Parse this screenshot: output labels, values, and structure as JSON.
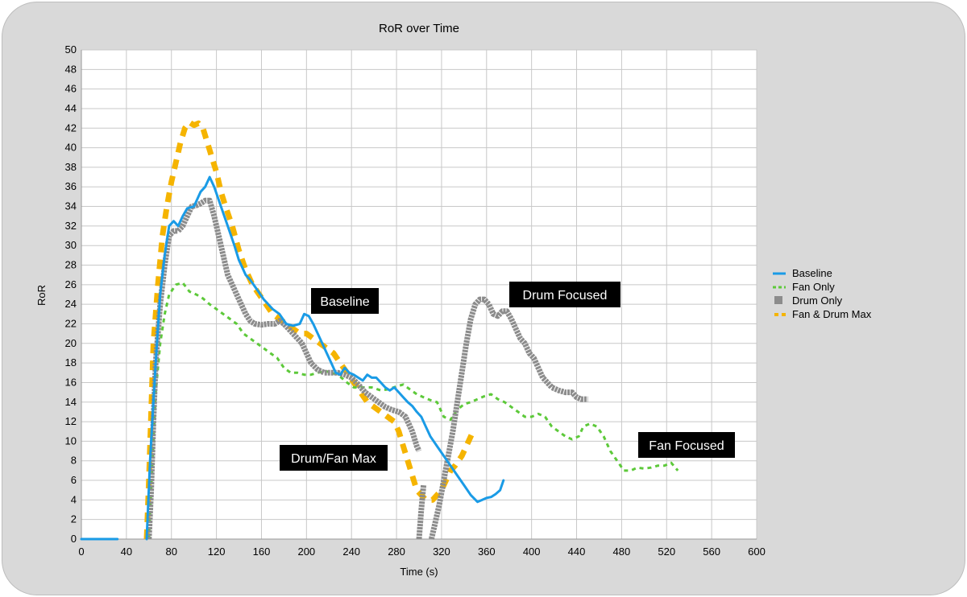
{
  "chart_data": {
    "type": "line",
    "title": "RoR over Time",
    "xlabel": "Time (s)",
    "ylabel": "RoR",
    "xlim": [
      0,
      600
    ],
    "ylim": [
      0,
      50
    ],
    "xticks": [
      0,
      40,
      80,
      120,
      160,
      200,
      240,
      280,
      320,
      360,
      400,
      440,
      480,
      520,
      560,
      600
    ],
    "yticks": [
      0,
      2,
      4,
      6,
      8,
      10,
      12,
      14,
      16,
      18,
      20,
      22,
      24,
      26,
      28,
      30,
      32,
      34,
      36,
      38,
      40,
      42,
      44,
      46,
      48,
      50
    ],
    "grid": true,
    "legend_position": "right",
    "series": [
      {
        "name": "Baseline",
        "color": "#1a9be6",
        "style": "solid",
        "points": [
          [
            0,
            0
          ],
          [
            32,
            0
          ],
          [
            null,
            null
          ],
          [
            58,
            0
          ],
          [
            61,
            8
          ],
          [
            66,
            18
          ],
          [
            70,
            25
          ],
          [
            74,
            29
          ],
          [
            78,
            32
          ],
          [
            82,
            32.5
          ],
          [
            86,
            32
          ],
          [
            90,
            33
          ],
          [
            94,
            33.8
          ],
          [
            100,
            34
          ],
          [
            106,
            35.5
          ],
          [
            110,
            36
          ],
          [
            114,
            37
          ],
          [
            118,
            36
          ],
          [
            124,
            34
          ],
          [
            130,
            32
          ],
          [
            136,
            30
          ],
          [
            140,
            28.5
          ],
          [
            146,
            27
          ],
          [
            150,
            26.5
          ],
          [
            156,
            25.5
          ],
          [
            162,
            24.5
          ],
          [
            170,
            23.5
          ],
          [
            176,
            23
          ],
          [
            182,
            22
          ],
          [
            188,
            21.8
          ],
          [
            194,
            22
          ],
          [
            198,
            23
          ],
          [
            202,
            22.8
          ],
          [
            206,
            22
          ],
          [
            210,
            21
          ],
          [
            214,
            20
          ],
          [
            218,
            19
          ],
          [
            222,
            18
          ],
          [
            226,
            17
          ],
          [
            230,
            16.8
          ],
          [
            234,
            17.5
          ],
          [
            238,
            17
          ],
          [
            242,
            16.8
          ],
          [
            246,
            16.5
          ],
          [
            250,
            16.2
          ],
          [
            254,
            16.8
          ],
          [
            258,
            16.5
          ],
          [
            262,
            16.5
          ],
          [
            266,
            16
          ],
          [
            270,
            15.5
          ],
          [
            274,
            15.2
          ],
          [
            278,
            15.5
          ],
          [
            282,
            15
          ],
          [
            286,
            14.5
          ],
          [
            290,
            14
          ],
          [
            294,
            13.6
          ],
          [
            298,
            13
          ],
          [
            302,
            12.5
          ],
          [
            306,
            11.5
          ],
          [
            310,
            10.5
          ],
          [
            316,
            9.5
          ],
          [
            322,
            8.5
          ],
          [
            328,
            7.5
          ],
          [
            334,
            6.5
          ],
          [
            340,
            5.5
          ],
          [
            346,
            4.5
          ],
          [
            352,
            3.8
          ],
          [
            356,
            4
          ],
          [
            360,
            4.2
          ],
          [
            364,
            4.3
          ],
          [
            368,
            4.6
          ],
          [
            372,
            5
          ],
          [
            375,
            6
          ]
        ]
      },
      {
        "name": "Fan Only",
        "color": "#5dc93a",
        "style": "dashed",
        "points": [
          [
            60,
            0
          ],
          [
            62,
            5
          ],
          [
            64,
            10
          ],
          [
            66,
            15
          ],
          [
            70,
            20
          ],
          [
            74,
            23
          ],
          [
            78,
            25
          ],
          [
            84,
            26
          ],
          [
            90,
            26.2
          ],
          [
            96,
            25.3
          ],
          [
            102,
            25
          ],
          [
            108,
            24.6
          ],
          [
            114,
            24
          ],
          [
            120,
            23.5
          ],
          [
            126,
            23
          ],
          [
            132,
            22.5
          ],
          [
            138,
            22
          ],
          [
            144,
            21
          ],
          [
            150,
            20.5
          ],
          [
            156,
            20
          ],
          [
            162,
            19.5
          ],
          [
            168,
            19
          ],
          [
            174,
            18.5
          ],
          [
            180,
            17.5
          ],
          [
            186,
            17
          ],
          [
            192,
            17
          ],
          [
            198,
            16.8
          ],
          [
            204,
            16.8
          ],
          [
            210,
            17
          ],
          [
            216,
            17.2
          ],
          [
            222,
            17
          ],
          [
            228,
            16.8
          ],
          [
            236,
            16
          ],
          [
            242,
            15.5
          ],
          [
            250,
            15.5
          ],
          [
            258,
            15.5
          ],
          [
            266,
            15.2
          ],
          [
            272,
            15.3
          ],
          [
            280,
            15.6
          ],
          [
            286,
            15.8
          ],
          [
            292,
            15.3
          ],
          [
            298,
            14.8
          ],
          [
            304,
            14.5
          ],
          [
            310,
            14.2
          ],
          [
            316,
            14
          ],
          [
            322,
            12.5
          ],
          [
            328,
            12.2
          ],
          [
            334,
            13.2
          ],
          [
            340,
            13.8
          ],
          [
            346,
            14
          ],
          [
            352,
            14.3
          ],
          [
            358,
            14.6
          ],
          [
            364,
            14.8
          ],
          [
            370,
            14.3
          ],
          [
            376,
            14
          ],
          [
            382,
            13.5
          ],
          [
            388,
            13
          ],
          [
            394,
            12.5
          ],
          [
            400,
            12.5
          ],
          [
            406,
            12.8
          ],
          [
            412,
            12.5
          ],
          [
            418,
            11.5
          ],
          [
            424,
            11
          ],
          [
            430,
            10.5
          ],
          [
            436,
            10.2
          ],
          [
            442,
            10.5
          ],
          [
            446,
            11.5
          ],
          [
            452,
            11.8
          ],
          [
            458,
            11.5
          ],
          [
            464,
            10.5
          ],
          [
            470,
            9
          ],
          [
            476,
            8
          ],
          [
            482,
            7
          ],
          [
            488,
            7
          ],
          [
            494,
            7.3
          ],
          [
            500,
            7.2
          ],
          [
            506,
            7.3
          ],
          [
            512,
            7.5
          ],
          [
            518,
            7.5
          ],
          [
            524,
            7.8
          ],
          [
            530,
            7
          ]
        ]
      },
      {
        "name": "Drum Only",
        "color": "#8c8c8c",
        "style": "thick",
        "points": [
          [
            60,
            0
          ],
          [
            62,
            5
          ],
          [
            64,
            12
          ],
          [
            66,
            18
          ],
          [
            70,
            24
          ],
          [
            74,
            28
          ],
          [
            78,
            31
          ],
          [
            82,
            31.5
          ],
          [
            86,
            31.5
          ],
          [
            90,
            32
          ],
          [
            94,
            33
          ],
          [
            98,
            34
          ],
          [
            102,
            34.1
          ],
          [
            106,
            34.3
          ],
          [
            110,
            34.6
          ],
          [
            114,
            34.6
          ],
          [
            118,
            33
          ],
          [
            122,
            31
          ],
          [
            126,
            29
          ],
          [
            130,
            27
          ],
          [
            134,
            26
          ],
          [
            138,
            25
          ],
          [
            142,
            24
          ],
          [
            146,
            23
          ],
          [
            150,
            22.3
          ],
          [
            154,
            22
          ],
          [
            160,
            21.9
          ],
          [
            166,
            22
          ],
          [
            172,
            22
          ],
          [
            176,
            22.3
          ],
          [
            180,
            22
          ],
          [
            184,
            21.5
          ],
          [
            188,
            21
          ],
          [
            192,
            20.5
          ],
          [
            196,
            20
          ],
          [
            200,
            19
          ],
          [
            204,
            18
          ],
          [
            210,
            17.3
          ],
          [
            216,
            17
          ],
          [
            222,
            17
          ],
          [
            228,
            17
          ],
          [
            234,
            16.8
          ],
          [
            240,
            16.5
          ],
          [
            246,
            15.8
          ],
          [
            252,
            15
          ],
          [
            258,
            14.5
          ],
          [
            264,
            14
          ],
          [
            270,
            13.5
          ],
          [
            276,
            13.2
          ],
          [
            282,
            13
          ],
          [
            288,
            12.5
          ],
          [
            294,
            11
          ],
          [
            298,
            9.5
          ],
          [
            300,
            9
          ],
          [
            null,
            null
          ],
          [
            300,
            0
          ],
          [
            302,
            3
          ],
          [
            304,
            5.5
          ],
          [
            null,
            null
          ],
          [
            311,
            0
          ],
          [
            314,
            1.5
          ],
          [
            318,
            3.5
          ],
          [
            322,
            6
          ],
          [
            326,
            8.5
          ],
          [
            330,
            11
          ],
          [
            334,
            14
          ],
          [
            338,
            17
          ],
          [
            342,
            20
          ],
          [
            346,
            22.5
          ],
          [
            350,
            24
          ],
          [
            354,
            24.5
          ],
          [
            358,
            24.5
          ],
          [
            362,
            24
          ],
          [
            366,
            23
          ],
          [
            370,
            22.8
          ],
          [
            374,
            23.3
          ],
          [
            378,
            23.3
          ],
          [
            382,
            22.5
          ],
          [
            386,
            21.5
          ],
          [
            390,
            20.5
          ],
          [
            394,
            20
          ],
          [
            398,
            19
          ],
          [
            402,
            18.5
          ],
          [
            406,
            17.5
          ],
          [
            410,
            16.5
          ],
          [
            414,
            16
          ],
          [
            418,
            15.5
          ],
          [
            424,
            15.2
          ],
          [
            430,
            15
          ],
          [
            436,
            15
          ],
          [
            440,
            14.5
          ],
          [
            444,
            14.3
          ],
          [
            450,
            14.3
          ]
        ]
      },
      {
        "name": "Fan & Drum Max",
        "color": "#f5b400",
        "style": "dashed-thick",
        "points": [
          [
            58,
            0
          ],
          [
            60,
            6
          ],
          [
            62,
            13
          ],
          [
            64,
            20
          ],
          [
            68,
            26
          ],
          [
            72,
            31
          ],
          [
            76,
            34
          ],
          [
            80,
            36.5
          ],
          [
            84,
            38.5
          ],
          [
            88,
            40.5
          ],
          [
            92,
            42
          ],
          [
            96,
            42.6
          ],
          [
            100,
            42.3
          ],
          [
            104,
            42.5
          ],
          [
            108,
            42
          ],
          [
            112,
            40.5
          ],
          [
            116,
            39
          ],
          [
            120,
            37.5
          ],
          [
            124,
            35.5
          ],
          [
            128,
            34
          ],
          [
            134,
            32
          ],
          [
            140,
            29.5
          ],
          [
            146,
            27.5
          ],
          [
            152,
            26
          ],
          [
            158,
            25
          ],
          [
            164,
            24
          ],
          [
            170,
            23
          ],
          [
            176,
            22.5
          ],
          [
            182,
            22
          ],
          [
            188,
            21.5
          ],
          [
            194,
            21
          ],
          [
            200,
            21
          ],
          [
            206,
            20.5
          ],
          [
            212,
            20
          ],
          [
            218,
            19.5
          ],
          [
            224,
            19
          ],
          [
            230,
            18
          ],
          [
            236,
            17
          ],
          [
            242,
            16
          ],
          [
            248,
            15
          ],
          [
            254,
            14
          ],
          [
            260,
            13.5
          ],
          [
            266,
            13
          ],
          [
            272,
            12.5
          ],
          [
            278,
            12
          ],
          [
            282,
            11
          ],
          [
            286,
            9.5
          ],
          [
            290,
            8
          ],
          [
            294,
            6.5
          ],
          [
            298,
            5
          ],
          [
            302,
            4.5
          ],
          [
            306,
            4
          ],
          [
            312,
            4
          ],
          [
            316,
            4.5
          ],
          [
            320,
            5
          ],
          [
            324,
            6
          ],
          [
            328,
            7
          ],
          [
            332,
            7.5
          ],
          [
            338,
            8.5
          ],
          [
            344,
            10
          ],
          [
            348,
            11
          ]
        ]
      }
    ],
    "annotations": [
      "Baseline",
      "Drum Focused",
      "Drum/Fan Max",
      "Fan Focused"
    ]
  }
}
